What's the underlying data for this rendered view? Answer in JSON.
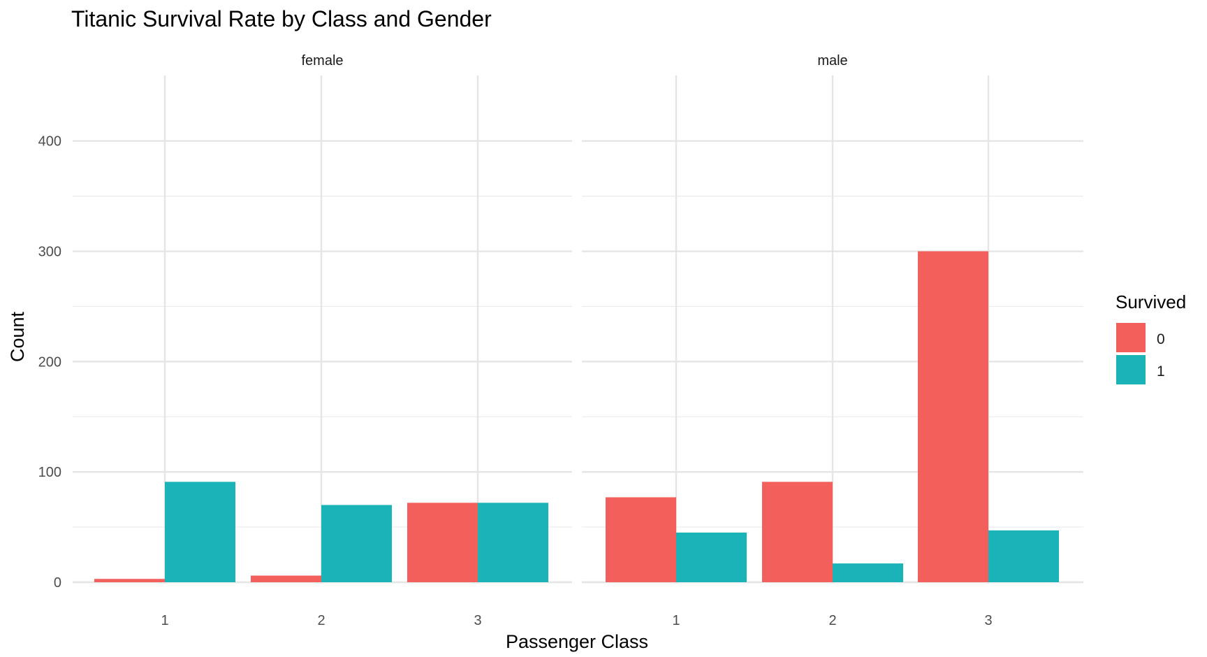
{
  "chart_data": {
    "type": "bar",
    "title": "Titanic Survival Rate by Class and Gender",
    "xlabel": "Passenger Class",
    "ylabel": "Count",
    "ylim": [
      0,
      440
    ],
    "yticks": [
      0,
      100,
      200,
      300,
      400
    ],
    "categories": [
      "1",
      "2",
      "3"
    ],
    "grid": true,
    "legend": {
      "title": "Survived",
      "position": "right",
      "entries": [
        {
          "label": "0",
          "color": "#F35F5A"
        },
        {
          "label": "1",
          "color": "#19B3B8"
        }
      ]
    },
    "panels": [
      {
        "facet": "female",
        "series": [
          {
            "name": "0",
            "values": [
              3,
              6,
              72
            ]
          },
          {
            "name": "1",
            "values": [
              91,
              70,
              72
            ]
          }
        ]
      },
      {
        "facet": "male",
        "series": [
          {
            "name": "0",
            "values": [
              77,
              91,
              300
            ]
          },
          {
            "name": "1",
            "values": [
              45,
              17,
              47
            ]
          }
        ]
      }
    ]
  }
}
